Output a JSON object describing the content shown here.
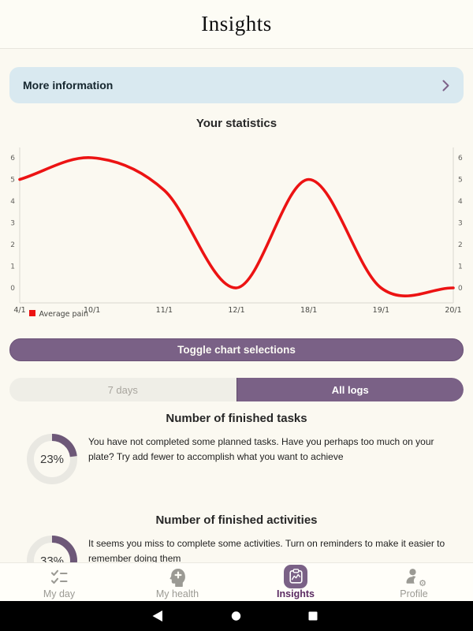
{
  "header": {
    "title": "Insights"
  },
  "banner": {
    "label": "More information"
  },
  "stats": {
    "title": "Your statistics"
  },
  "chart_data": {
    "type": "line",
    "categories": [
      "4/1",
      "10/1",
      "11/1",
      "12/1",
      "18/1",
      "19/1",
      "20/1"
    ],
    "series": [
      {
        "name": "Average pain",
        "color": "#ec1313",
        "values": [
          5,
          6,
          4.5,
          0,
          5,
          0,
          0
        ]
      }
    ],
    "yticks": [
      0,
      1,
      2,
      3,
      4,
      5,
      6
    ],
    "ylim": [
      0,
      6
    ],
    "xlabel": "",
    "ylabel": "",
    "grid": false,
    "legend_position": "bottom-left",
    "smooth": true
  },
  "toggle_button": {
    "label": "Toggle chart selections"
  },
  "tabs": [
    {
      "label": "7 days",
      "active": false
    },
    {
      "label": "All logs",
      "active": true
    }
  ],
  "sections": [
    {
      "title": "Number of finished tasks",
      "percent": "23%",
      "value": 23,
      "text": "You have not completed some planned tasks. Have you perhaps too much on your plate? Try add fewer to accomplish what you want to achieve"
    },
    {
      "title": "Number of finished activities",
      "percent": "33%",
      "value": 33,
      "text": "It seems you miss to complete some activities. Turn on reminders to make it easier to remember doing them"
    }
  ],
  "bottom_nav": [
    {
      "label": "My day",
      "icon": "checklist-icon",
      "active": false
    },
    {
      "label": "My health",
      "icon": "head-plus-icon",
      "active": false
    },
    {
      "label": "Insights",
      "icon": "clipboard-chart-icon",
      "active": true
    },
    {
      "label": "Profile",
      "icon": "person-gear-icon",
      "active": false
    }
  ],
  "colors": {
    "accent_purple": "#7a6186",
    "ring_purple": "#6d5878",
    "ring_track": "#e9e8e2",
    "line_red": "#ec1313",
    "banner_blue": "#d9e9f0",
    "axis_gray": "#d8d7cf"
  },
  "gear_glyph": "⚙"
}
